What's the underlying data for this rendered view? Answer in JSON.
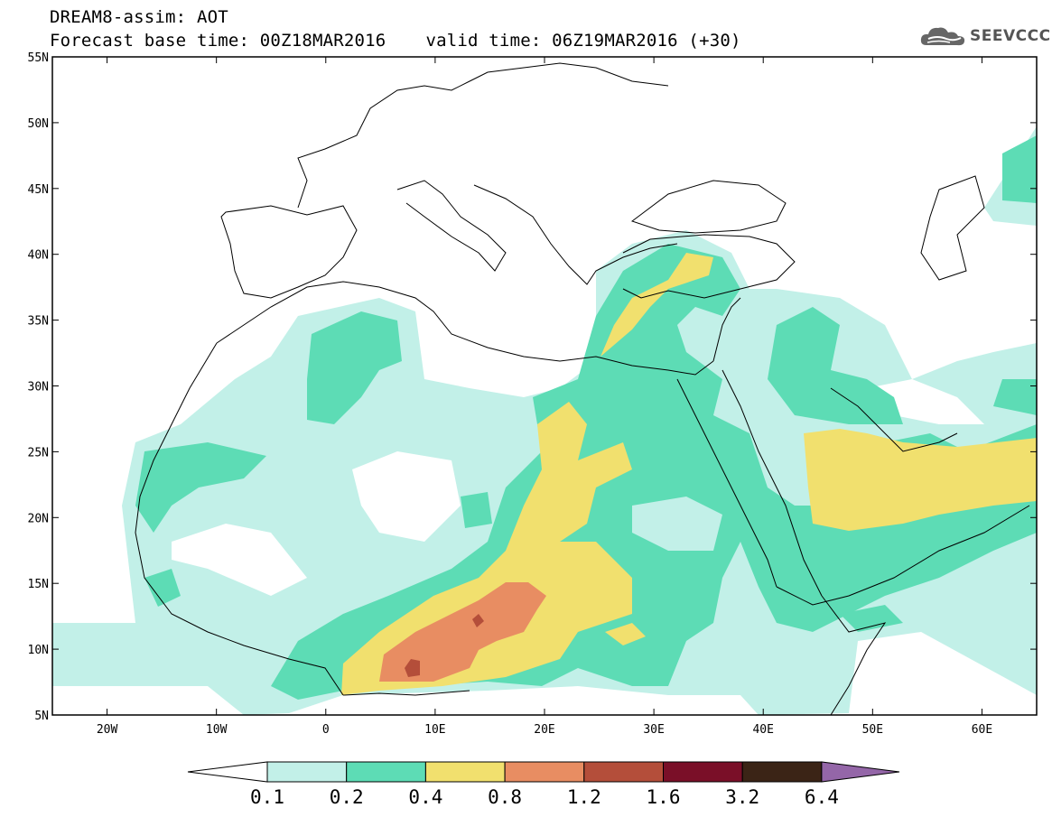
{
  "title": {
    "line1": "DREAM8-assim: AOT",
    "base_time": "Forecast base time: 00Z18MAR2016",
    "valid_time": "valid time: 06Z19MAR2016 (+30)"
  },
  "logo": {
    "text": "SEEVCCC",
    "icon": "cloud-icon"
  },
  "axes": {
    "lat_labels": [
      "55N",
      "50N",
      "45N",
      "40N",
      "35N",
      "30N",
      "25N",
      "20N",
      "15N",
      "10N",
      "5N"
    ],
    "lat_values": [
      55,
      50,
      45,
      40,
      35,
      30,
      25,
      20,
      15,
      10,
      5
    ],
    "lon_labels": [
      "20W",
      "10W",
      "0",
      "10E",
      "20E",
      "30E",
      "40E",
      "50E",
      "60E"
    ],
    "lon_values": [
      -20,
      -10,
      0,
      10,
      20,
      30,
      40,
      50,
      60
    ],
    "lon_range": [
      -25,
      65
    ],
    "lat_range": [
      5,
      55
    ]
  },
  "colorbar": {
    "labels": [
      "0.1",
      "0.2",
      "0.4",
      "0.8",
      "1.2",
      "1.6",
      "3.2",
      "6.4"
    ],
    "colors": [
      "#c2f0e8",
      "#5ddcb5",
      "#f1e06e",
      "#e88d62",
      "#b44e3a",
      "#7a0f28",
      "#3b2416",
      "#9466a8"
    ]
  }
}
